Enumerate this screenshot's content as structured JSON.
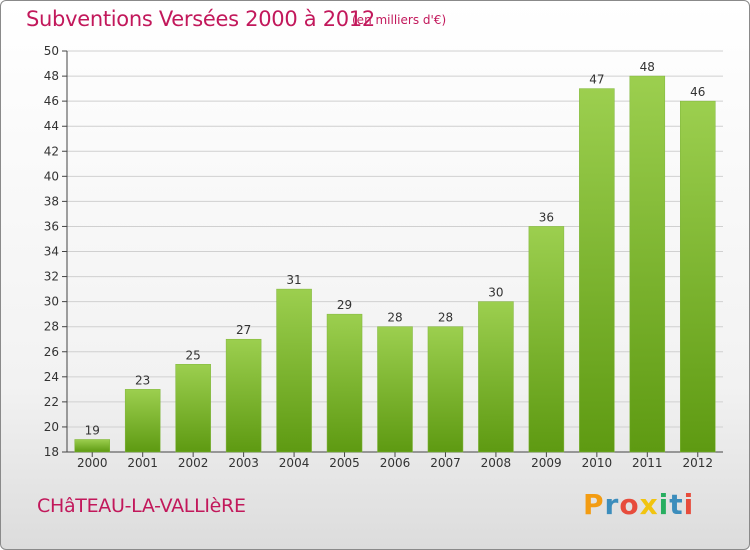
{
  "header": {
    "title": "Subventions Versées 2000 à 2012",
    "subtitle": "(en milliers d'€)"
  },
  "footer": {
    "commune": "CHâTEAU-LA-VALLIèRE",
    "logo": "Proxiti",
    "logo_colors": [
      "#f39c12",
      "#3c8dbc",
      "#e74c3c",
      "#f1c40f",
      "#27ae60",
      "#3c8dbc",
      "#e74c3c"
    ]
  },
  "colors": {
    "bar_top": "#9ccf4f",
    "bar_bottom": "#5e9a12",
    "grid": "#d0d0d0",
    "accent": "#c2185b"
  },
  "chart_data": {
    "type": "bar",
    "categories": [
      "2000",
      "2001",
      "2002",
      "2003",
      "2004",
      "2005",
      "2006",
      "2007",
      "2008",
      "2009",
      "2010",
      "2011",
      "2012"
    ],
    "values": [
      19,
      23,
      25,
      27,
      31,
      29,
      28,
      28,
      30,
      36,
      47,
      48,
      46
    ],
    "ylim": [
      18,
      50
    ],
    "yticks": [
      18,
      20,
      22,
      24,
      26,
      28,
      30,
      32,
      34,
      36,
      38,
      40,
      42,
      44,
      46,
      48,
      50
    ],
    "grid": true,
    "data_labels": true
  }
}
